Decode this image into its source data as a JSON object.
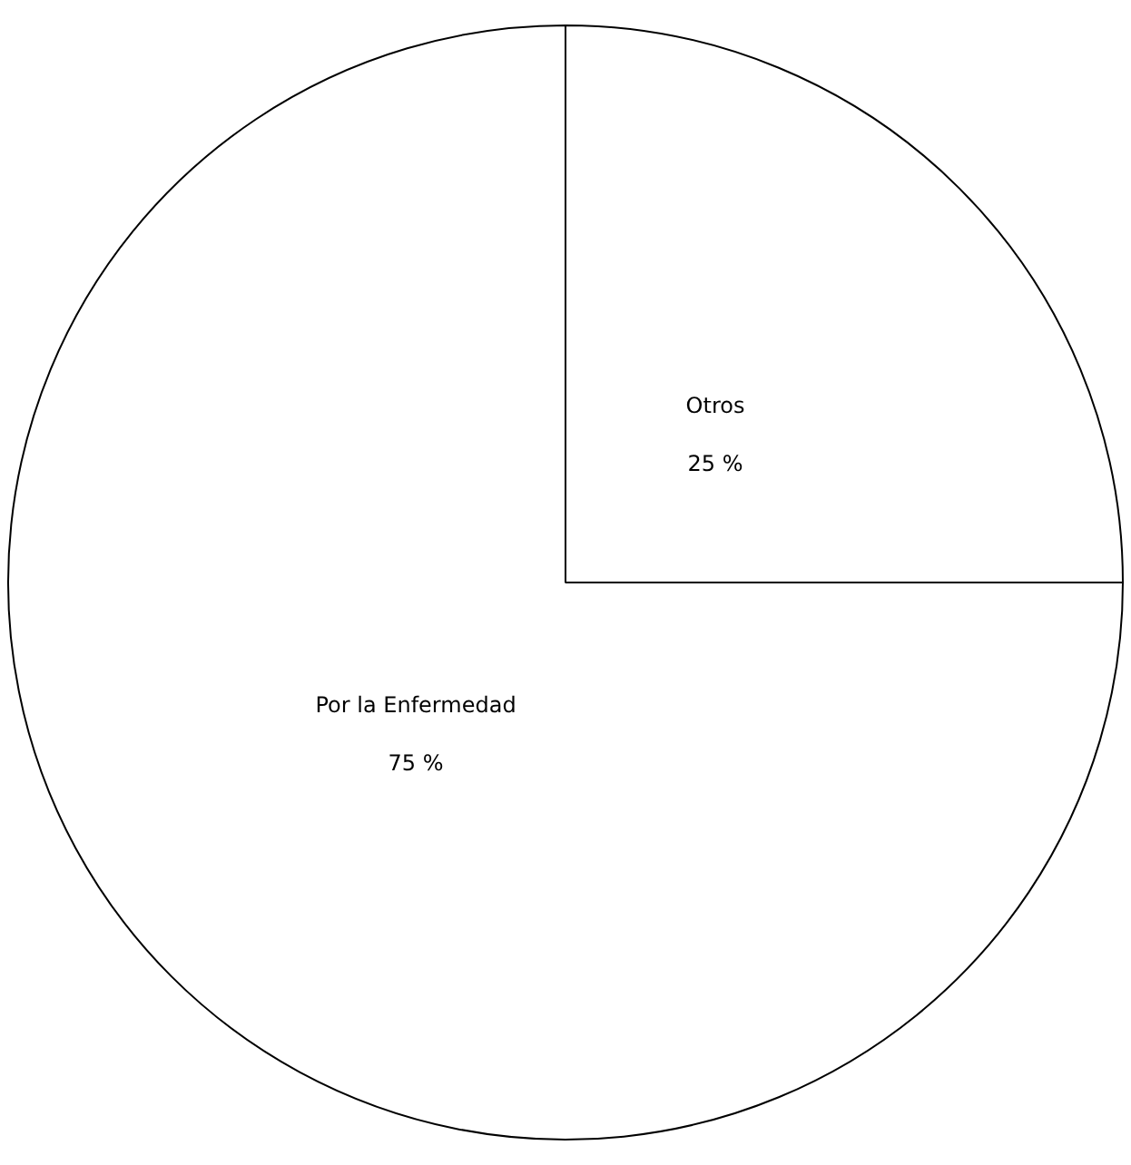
{
  "chart_data": {
    "type": "pie",
    "categories": [
      "Otros",
      "Por la Enfermedad"
    ],
    "values": [
      25,
      75
    ],
    "colors": [
      "#ffffff",
      "#ffffff"
    ],
    "value_labels": [
      "25 %",
      "75 %"
    ],
    "legend": false
  }
}
